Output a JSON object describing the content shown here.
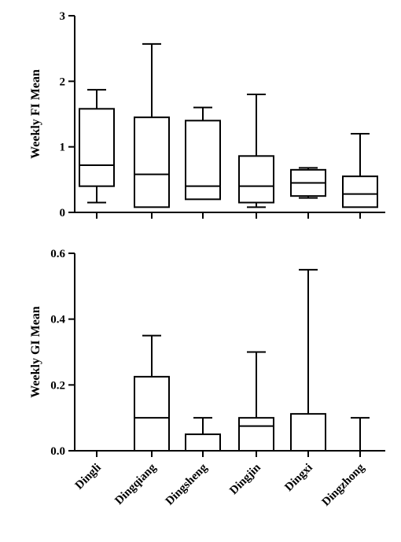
{
  "chart_data": [
    {
      "type": "box",
      "ylabel": "Weekly FI Mean",
      "ylim": [
        0,
        3
      ],
      "yticks": [
        "0",
        "1",
        "2",
        "3"
      ],
      "categories": [
        "Dingli",
        "Dingqiang",
        "Dingsheng",
        "Dingjin",
        "Dingxi",
        "Dingzhong"
      ],
      "boxes": [
        {
          "min": 0.15,
          "q1": 0.4,
          "median": 0.72,
          "q3": 1.58,
          "max": 1.87
        },
        {
          "min": 0.08,
          "q1": 0.08,
          "median": 0.58,
          "q3": 1.45,
          "max": 2.57
        },
        {
          "min": 0.2,
          "q1": 0.2,
          "median": 0.4,
          "q3": 1.4,
          "max": 1.6
        },
        {
          "min": 0.08,
          "q1": 0.15,
          "median": 0.4,
          "q3": 0.86,
          "max": 1.8
        },
        {
          "min": 0.22,
          "q1": 0.25,
          "median": 0.45,
          "q3": 0.65,
          "max": 0.68
        },
        {
          "min": 0.08,
          "q1": 0.08,
          "median": 0.28,
          "q3": 0.55,
          "max": 1.2
        }
      ]
    },
    {
      "type": "box",
      "ylabel": "Weekly GI Mean",
      "ylim": [
        0,
        0.6
      ],
      "yticks": [
        "0.0",
        "0.2",
        "0.4",
        "0.6"
      ],
      "categories": [
        "Dingli",
        "Dingqiang",
        "Dingsheng",
        "Dingjin",
        "Dingxi",
        "Dingzhong"
      ],
      "boxes": [
        {
          "min": 0,
          "q1": 0,
          "median": 0,
          "q3": 0,
          "max": 0
        },
        {
          "min": 0,
          "q1": 0,
          "median": 0.1,
          "q3": 0.225,
          "max": 0.35
        },
        {
          "min": 0,
          "q1": 0,
          "median": 0,
          "q3": 0.05,
          "max": 0.1
        },
        {
          "min": 0,
          "q1": 0,
          "median": 0.075,
          "q3": 0.1,
          "max": 0.3
        },
        {
          "min": 0,
          "q1": 0,
          "median": 0,
          "q3": 0.112,
          "max": 0.55
        },
        {
          "min": 0,
          "q1": 0,
          "median": 0,
          "q3": 0,
          "max": 0.1
        }
      ]
    }
  ]
}
